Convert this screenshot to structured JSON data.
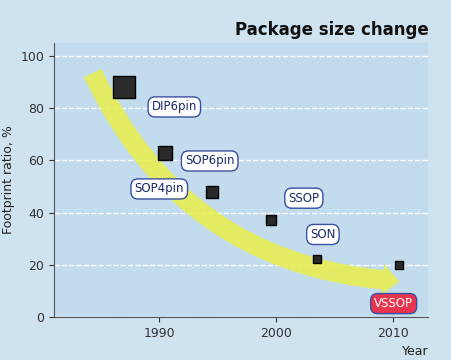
{
  "chart_data": {
    "type": "scatter",
    "title": "Package size change",
    "x_label": "Year",
    "y_label": "Footprint ratio, %",
    "x": [
      1987,
      1990.5,
      1994.5,
      1999.5,
      2003.5,
      2010.5
    ],
    "values": [
      88,
      63,
      48,
      37,
      22,
      20
    ],
    "annotations": [
      "DIP6pin",
      "SOP6pin",
      "SOP4pin",
      "SSOP",
      "SON",
      "VSSOP"
    ],
    "colors": [
      "#ffffff",
      "#ffffff",
      "#ffffff",
      "#ffffff",
      "#ffffff",
      "#e8354f"
    ],
    "marker": "s",
    "xlim": [
      1981,
      2013
    ],
    "xticks": [
      1990,
      2000,
      2010
    ],
    "ylim": [
      0,
      105
    ],
    "yticks": [
      0,
      20,
      40,
      60,
      80,
      100
    ],
    "grid": true
  }
}
